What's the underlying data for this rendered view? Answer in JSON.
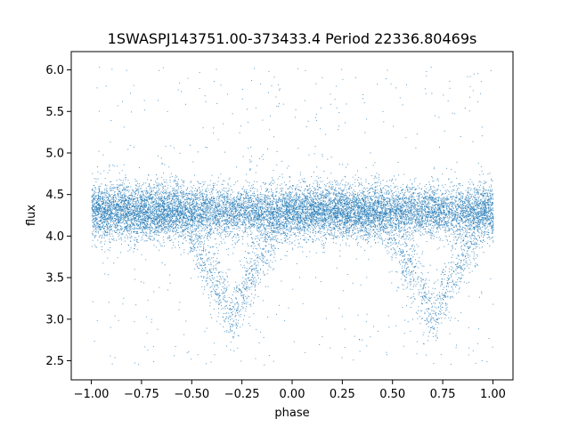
{
  "chart_data": {
    "type": "scatter",
    "title": "1SWASPJ143751.00-373433.4 Period 22336.80469s",
    "xlabel": "phase",
    "ylabel": "flux",
    "xlim": [
      -1.1,
      1.1
    ],
    "ylim": [
      2.27,
      6.22
    ],
    "xticks": [
      -1.0,
      -0.75,
      -0.5,
      -0.25,
      0.0,
      0.25,
      0.5,
      0.75,
      1.0
    ],
    "xtick_labels": [
      "−1.00",
      "−0.75",
      "−0.50",
      "−0.25",
      "0.00",
      "0.25",
      "0.50",
      "0.75",
      "1.00"
    ],
    "yticks": [
      2.5,
      3.0,
      3.5,
      4.0,
      4.5,
      5.0,
      5.5,
      6.0
    ],
    "ytick_labels": [
      "2.5",
      "3.0",
      "3.5",
      "4.0",
      "4.5",
      "5.0",
      "5.5",
      "6.0"
    ],
    "grid": false,
    "marker_color": "#1f77b4",
    "series": [
      {
        "phase_range": [
          -1.0,
          1.0
        ],
        "baseline_flux": 4.3,
        "baseline_scatter": 0.15,
        "eclipses": [
          {
            "phase_center": -0.3,
            "min_flux": 3.05
          },
          {
            "phase_center": 0.7,
            "min_flux": 3.05
          }
        ],
        "outlier_flux_range": [
          2.45,
          6.05
        ]
      }
    ]
  }
}
